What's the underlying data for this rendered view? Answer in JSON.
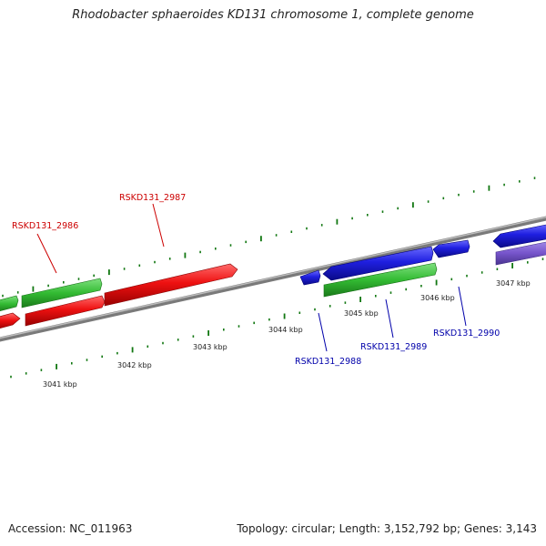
{
  "title": "Rhodobacter sphaeroides KD131 chromosome 1, complete genome",
  "footer": {
    "accession": "Accession: NC_011963",
    "stats": "Topology: circular; Length: 3,152,792 bp; Genes: 3,143"
  },
  "colors": {
    "forward_gene": "#ee1111",
    "reverse_gene": "#1f1fe0",
    "rna_green": "#33bb33",
    "rna_purple": "#7755cc",
    "backbone": "#888888",
    "tick": "#117711",
    "label_red": "#cc0000",
    "label_blue": "#0000aa"
  },
  "kbp_labels": [
    "3041 kbp",
    "3042 kbp",
    "3043 kbp",
    "3044 kbp",
    "3045 kbp",
    "3046 kbp",
    "3047 kbp"
  ],
  "gene_labels": {
    "RSKD131_2986": "RSKD131_2986",
    "RSKD131_2987": "RSKD131_2987",
    "RSKD131_2988": "RSKD131_2988",
    "RSKD131_2989": "RSKD131_2989",
    "RSKD131_2990": "RSKD131_2990"
  }
}
